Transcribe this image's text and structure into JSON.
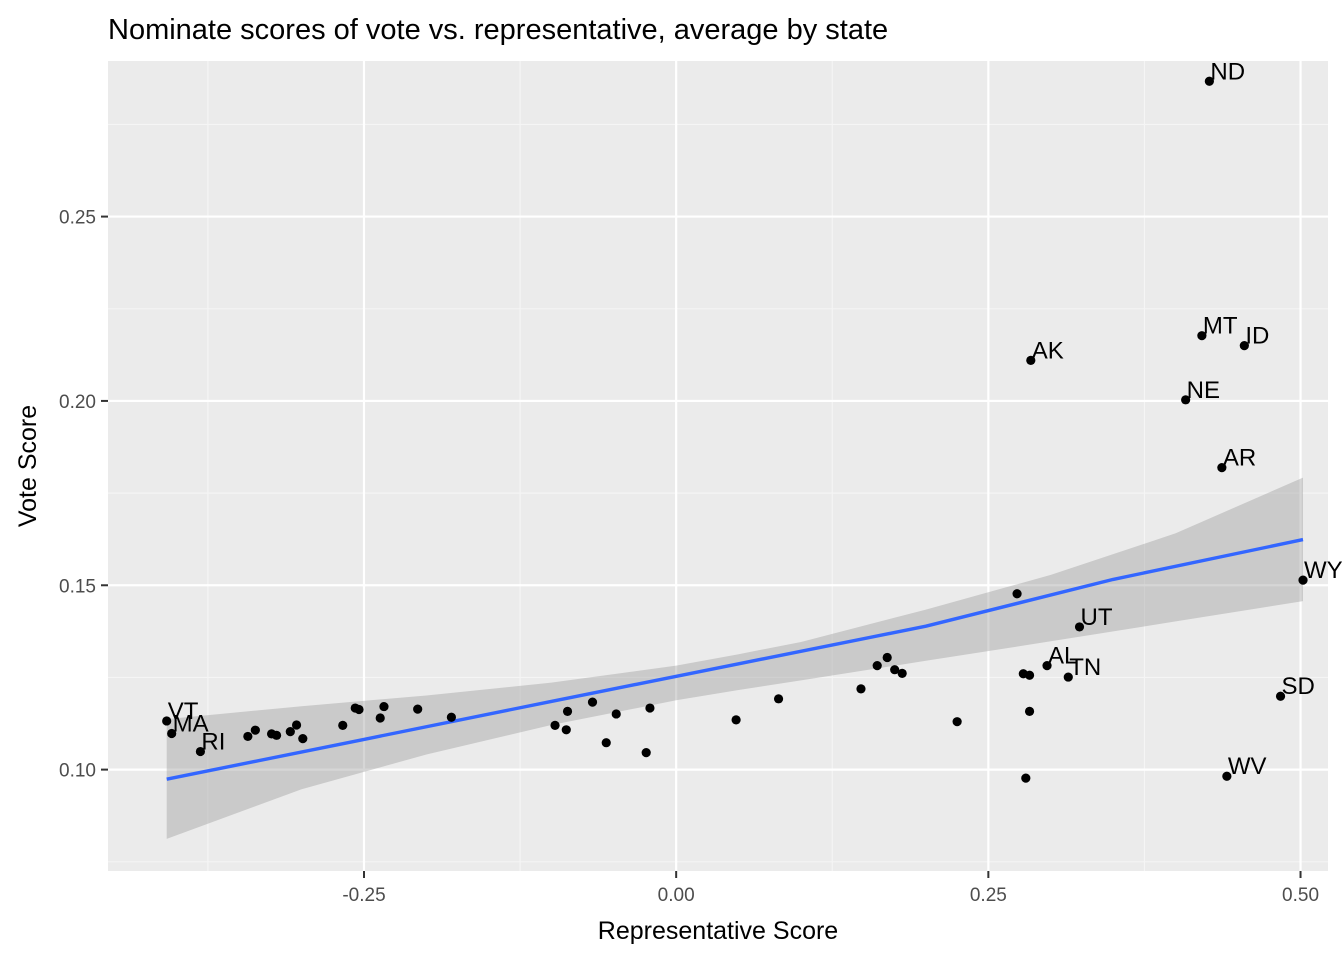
{
  "chart_data": {
    "type": "scatter",
    "title": "Nominate scores of vote vs. representative, average by state",
    "xlabel": "Representative Score",
    "ylabel": "Vote Score",
    "xlim": [
      -0.455,
      0.522
    ],
    "ylim": [
      0.0725,
      0.2922
    ],
    "x_ticks": [
      -0.25,
      0.0,
      0.25,
      0.5
    ],
    "x_tick_labels": [
      "-0.25",
      "0.00",
      "0.25",
      "0.50"
    ],
    "y_ticks": [
      0.1,
      0.15,
      0.2,
      0.25
    ],
    "y_tick_labels": [
      "0.10",
      "0.15",
      "0.20",
      "0.25"
    ],
    "grid": true,
    "colors": {
      "panel": "#ebebeb",
      "grid_major": "#ffffff",
      "grid_minor": "#f5f5f5",
      "point": "#000000",
      "fit_line": "#3366ff",
      "ribbon": "#999999"
    },
    "points": [
      {
        "x": -0.408,
        "y": 0.1132,
        "label": "VT"
      },
      {
        "x": -0.404,
        "y": 0.1098,
        "label": "MA"
      },
      {
        "x": -0.381,
        "y": 0.1049,
        "label": "RI"
      },
      {
        "x": -0.343,
        "y": 0.109,
        "label": ""
      },
      {
        "x": -0.337,
        "y": 0.1107,
        "label": ""
      },
      {
        "x": -0.324,
        "y": 0.1097,
        "label": ""
      },
      {
        "x": -0.32,
        "y": 0.1093,
        "label": ""
      },
      {
        "x": -0.309,
        "y": 0.1103,
        "label": ""
      },
      {
        "x": -0.304,
        "y": 0.1121,
        "label": ""
      },
      {
        "x": -0.299,
        "y": 0.1084,
        "label": ""
      },
      {
        "x": -0.267,
        "y": 0.112,
        "label": ""
      },
      {
        "x": -0.257,
        "y": 0.1167,
        "label": ""
      },
      {
        "x": -0.254,
        "y": 0.1163,
        "label": ""
      },
      {
        "x": -0.237,
        "y": 0.114,
        "label": ""
      },
      {
        "x": -0.234,
        "y": 0.1171,
        "label": ""
      },
      {
        "x": -0.207,
        "y": 0.1164,
        "label": ""
      },
      {
        "x": -0.18,
        "y": 0.1142,
        "label": ""
      },
      {
        "x": -0.097,
        "y": 0.112,
        "label": ""
      },
      {
        "x": -0.088,
        "y": 0.1108,
        "label": ""
      },
      {
        "x": -0.087,
        "y": 0.1158,
        "label": ""
      },
      {
        "x": -0.067,
        "y": 0.1183,
        "label": ""
      },
      {
        "x": -0.056,
        "y": 0.1073,
        "label": ""
      },
      {
        "x": -0.048,
        "y": 0.1151,
        "label": ""
      },
      {
        "x": -0.024,
        "y": 0.1046,
        "label": ""
      },
      {
        "x": -0.021,
        "y": 0.1167,
        "label": ""
      },
      {
        "x": 0.048,
        "y": 0.1135,
        "label": ""
      },
      {
        "x": 0.082,
        "y": 0.1192,
        "label": ""
      },
      {
        "x": 0.148,
        "y": 0.1219,
        "label": ""
      },
      {
        "x": 0.161,
        "y": 0.1282,
        "label": ""
      },
      {
        "x": 0.169,
        "y": 0.1304,
        "label": ""
      },
      {
        "x": 0.175,
        "y": 0.1271,
        "label": ""
      },
      {
        "x": 0.181,
        "y": 0.1261,
        "label": ""
      },
      {
        "x": 0.225,
        "y": 0.113,
        "label": ""
      },
      {
        "x": 0.273,
        "y": 0.1477,
        "label": ""
      },
      {
        "x": 0.278,
        "y": 0.126,
        "label": ""
      },
      {
        "x": 0.28,
        "y": 0.0977,
        "label": ""
      },
      {
        "x": 0.283,
        "y": 0.1256,
        "label": ""
      },
      {
        "x": 0.283,
        "y": 0.1158,
        "label": ""
      },
      {
        "x": 0.284,
        "y": 0.211,
        "label": "AK"
      },
      {
        "x": 0.297,
        "y": 0.1282,
        "label": "AL"
      },
      {
        "x": 0.314,
        "y": 0.1251,
        "label": "TN"
      },
      {
        "x": 0.323,
        "y": 0.1387,
        "label": "UT"
      },
      {
        "x": 0.408,
        "y": 0.2003,
        "label": "NE"
      },
      {
        "x": 0.421,
        "y": 0.2177,
        "label": "MT"
      },
      {
        "x": 0.427,
        "y": 0.2867,
        "label": "ND"
      },
      {
        "x": 0.437,
        "y": 0.1819,
        "label": "AR"
      },
      {
        "x": 0.441,
        "y": 0.0982,
        "label": "WV"
      },
      {
        "x": 0.455,
        "y": 0.215,
        "label": "ID"
      },
      {
        "x": 0.484,
        "y": 0.1199,
        "label": "SD"
      },
      {
        "x": 0.502,
        "y": 0.1514,
        "label": "WY"
      }
    ],
    "fit": {
      "x": [
        -0.408,
        -0.25,
        -0.1,
        0.05,
        0.2,
        0.35,
        0.502
      ],
      "y": [
        0.0974,
        0.1082,
        0.1185,
        0.1287,
        0.1389,
        0.1516,
        0.1624
      ]
    },
    "ribbon": {
      "x": [
        -0.408,
        -0.3,
        -0.2,
        -0.1,
        0.0,
        0.05,
        0.1,
        0.2,
        0.3,
        0.4,
        0.502
      ],
      "lower": [
        0.0812,
        0.0947,
        0.1041,
        0.1121,
        0.1188,
        0.1216,
        0.1242,
        0.1295,
        0.1348,
        0.1402,
        0.1457
      ],
      "upper": [
        0.1137,
        0.1172,
        0.1201,
        0.1236,
        0.1282,
        0.1313,
        0.1346,
        0.1434,
        0.1528,
        0.1641,
        0.1792
      ]
    }
  }
}
